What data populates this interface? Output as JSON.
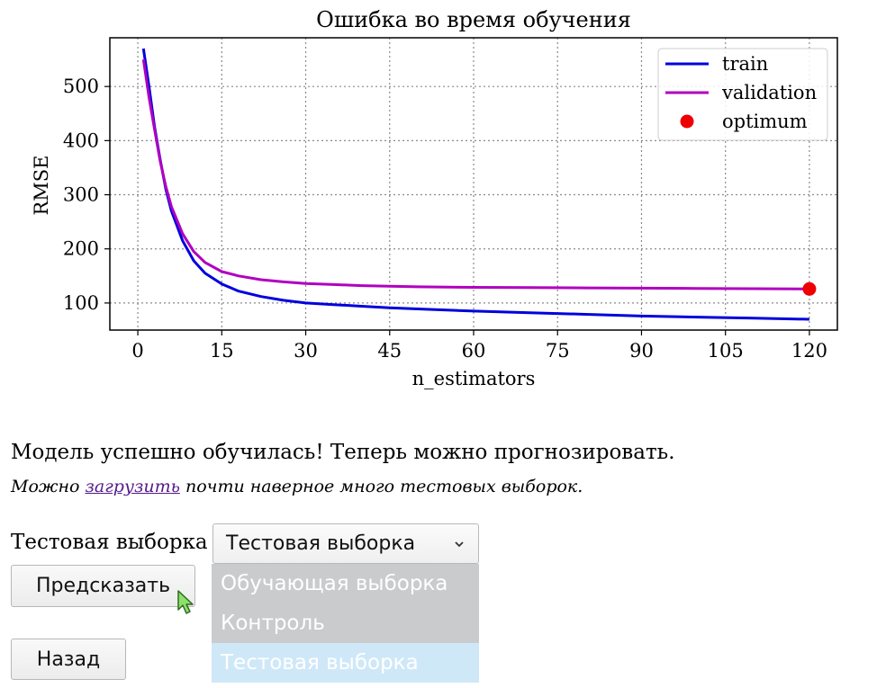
{
  "chart_data": {
    "type": "line",
    "title": "Ошибка во время обучения",
    "xlabel": "n_estimators",
    "ylabel": "RMSE",
    "xlim": [
      -5,
      125
    ],
    "ylim": [
      50,
      590
    ],
    "xticks": [
      0,
      15,
      30,
      45,
      60,
      75,
      90,
      105,
      120
    ],
    "yticks": [
      100,
      200,
      300,
      400,
      500
    ],
    "grid": true,
    "legend_position": "top-right",
    "series": [
      {
        "name": "train",
        "color": "#0000dd",
        "x": [
          1,
          2,
          3,
          4,
          5,
          6,
          8,
          10,
          12,
          15,
          18,
          22,
          26,
          30,
          35,
          40,
          45,
          50,
          60,
          70,
          80,
          90,
          100,
          110,
          120
        ],
        "y": [
          570,
          500,
          425,
          365,
          310,
          270,
          215,
          178,
          155,
          135,
          122,
          112,
          105,
          100,
          97,
          94,
          91,
          89,
          85,
          82,
          79,
          76,
          74,
          72,
          70
        ]
      },
      {
        "name": "validation",
        "color": "#b000c0",
        "x": [
          1,
          2,
          3,
          4,
          5,
          6,
          8,
          10,
          12,
          15,
          18,
          22,
          26,
          30,
          35,
          40,
          45,
          50,
          60,
          70,
          80,
          90,
          100,
          110,
          120
        ],
        "y": [
          550,
          480,
          420,
          362,
          315,
          278,
          228,
          195,
          175,
          158,
          150,
          143,
          139,
          136,
          134,
          132,
          131,
          130,
          129,
          128.5,
          128,
          127.5,
          127,
          126.5,
          126
        ]
      },
      {
        "name": "optimum",
        "color": "#ee0000",
        "marker": "circle",
        "x": [
          120
        ],
        "y": [
          126
        ]
      }
    ]
  },
  "message": "Модель успешно обучилась! Теперь можно прогнозировать.",
  "hint": {
    "prefix": "Можно ",
    "link": "загрузить",
    "suffix": " почти наверное много тестовых выборок."
  },
  "form": {
    "select_label": "Тестовая выборка",
    "select_value": "Тестовая выборка",
    "options": [
      "Обучающая выборка",
      "Контроль",
      "Тестовая выборка"
    ],
    "predict_button": "Предсказать",
    "back_button": "Назад"
  }
}
